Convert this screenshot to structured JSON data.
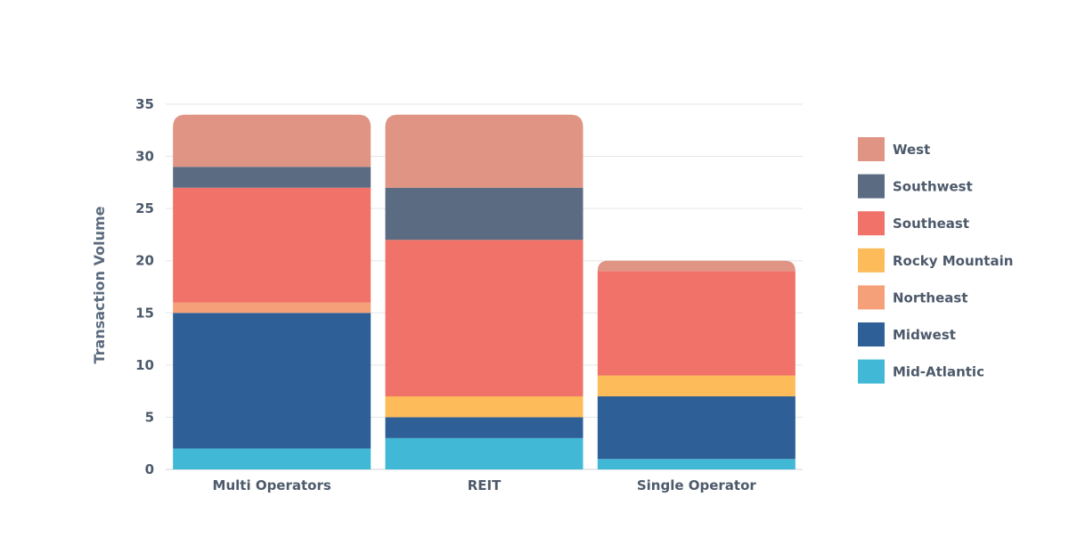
{
  "chart_data": {
    "type": "bar",
    "stacked": true,
    "categories": [
      "Multi Operators",
      "REIT",
      "Single Operator"
    ],
    "series": [
      {
        "name": "Mid-Atlantic",
        "color": "#40b8d6",
        "values": [
          2,
          3,
          1
        ]
      },
      {
        "name": "Midwest",
        "color": "#2e5f97",
        "values": [
          13,
          2,
          6
        ]
      },
      {
        "name": "Northeast",
        "color": "#f6a07a",
        "values": [
          1,
          0,
          0
        ]
      },
      {
        "name": "Rocky Mountain",
        "color": "#fdbb5a",
        "values": [
          0,
          2,
          2
        ]
      },
      {
        "name": "Southeast",
        "color": "#f07268",
        "values": [
          11,
          15,
          10
        ]
      },
      {
        "name": "Southwest",
        "color": "#5b6b82",
        "values": [
          2,
          5,
          0
        ]
      },
      {
        "name": "West",
        "color": "#e09483",
        "values": [
          5,
          7,
          1
        ]
      }
    ],
    "title": "",
    "xlabel": "",
    "ylabel": "Transaction Volume",
    "ylim": [
      0,
      35
    ],
    "yticks": [
      0,
      5,
      10,
      15,
      20,
      25,
      30,
      35
    ],
    "grid": true,
    "legend": {
      "position": "right",
      "order": [
        "West",
        "Southwest",
        "Southeast",
        "Rocky Mountain",
        "Northeast",
        "Midwest",
        "Mid-Atlantic"
      ]
    }
  }
}
